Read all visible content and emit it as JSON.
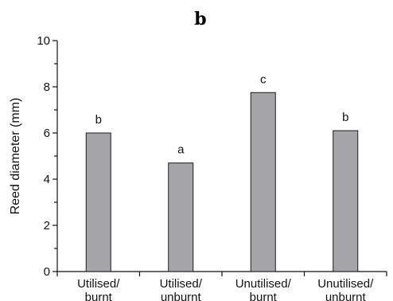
{
  "chart_data": {
    "type": "bar",
    "title": "b",
    "ylabel": "Reed diameter (mm)",
    "xlabel": "",
    "ylim": [
      0,
      10
    ],
    "yticks": [
      0,
      2,
      4,
      6,
      8,
      10
    ],
    "categories": [
      [
        "Utilised/",
        "burnt"
      ],
      [
        "Utilised/",
        "unburnt"
      ],
      [
        "Unutilised/",
        "burnt"
      ],
      [
        "Unutilised/",
        "unburnt"
      ]
    ],
    "values": [
      6.0,
      4.7,
      7.75,
      6.1
    ],
    "significance_labels": [
      "b",
      "a",
      "c",
      "b"
    ],
    "bar_color": "#a6a6aa",
    "grid": false,
    "legend": "none"
  }
}
